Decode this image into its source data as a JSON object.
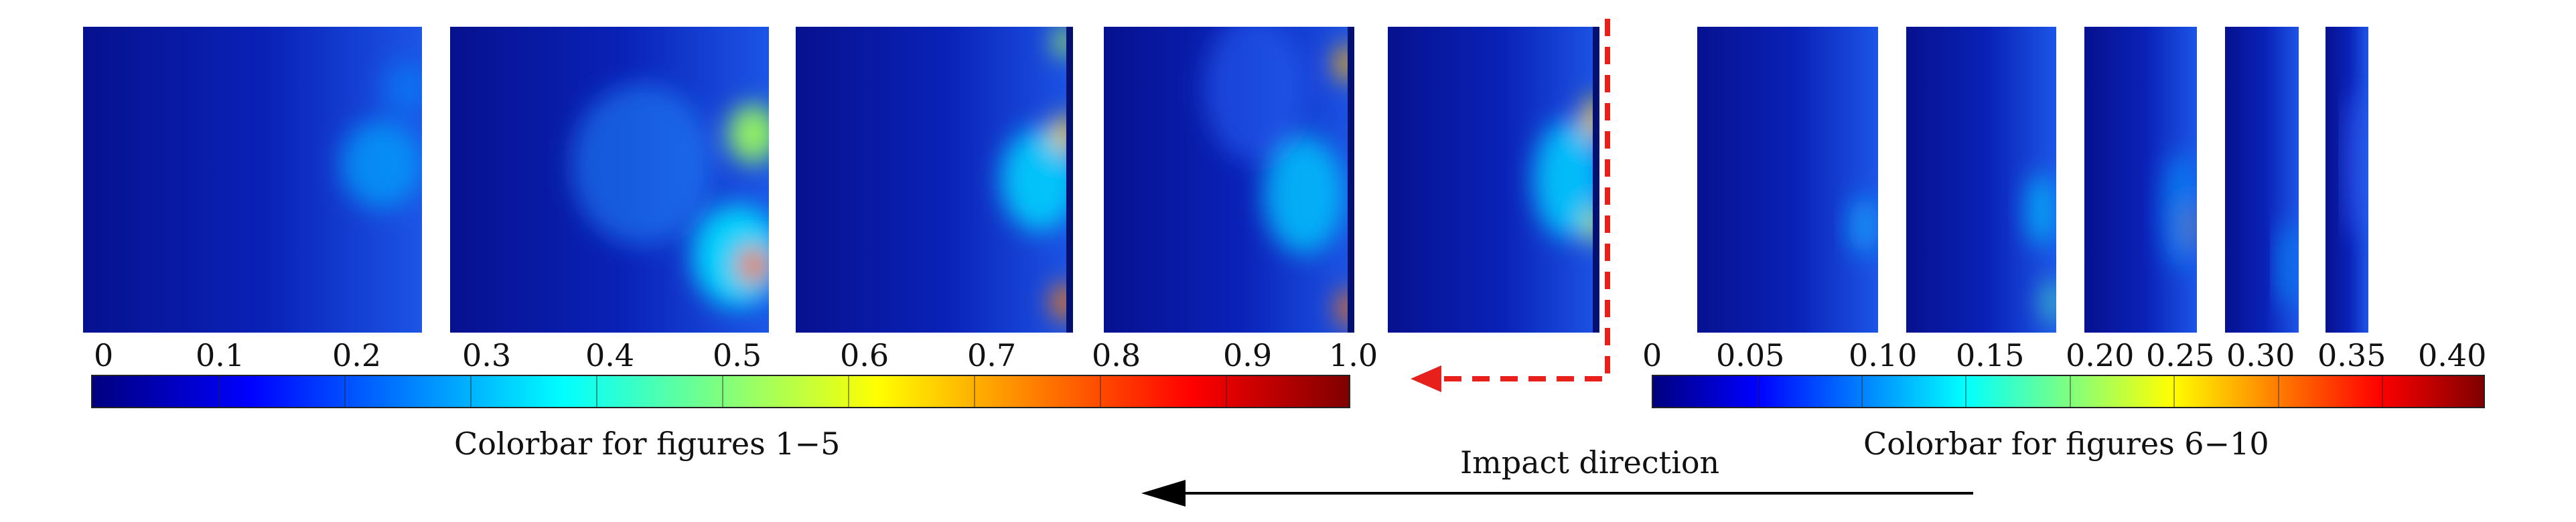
{
  "group_a": {
    "ticks": [
      "0",
      "0.1",
      "0.2",
      "0.3",
      "0.4",
      "0.5",
      "0.6",
      "0.7",
      "0.8",
      "0.9",
      "1.0"
    ],
    "colorbar_label": "Colorbar for figures 1−5"
  },
  "group_b": {
    "ticks": [
      "0",
      "0.05",
      "0.10",
      "0.15",
      "0.20",
      "0.25",
      "0.30",
      "0.35",
      "0.40"
    ],
    "colorbar_label": "Colorbar for figures 6−10"
  },
  "impact_label": "Impact direction",
  "colors": {
    "jet": [
      "#00007f",
      "#0000ff",
      "#007fff",
      "#00ffff",
      "#7fff7f",
      "#ffff00",
      "#ff7f00",
      "#ff0000",
      "#7f0000"
    ],
    "panel_base": "#0a1fb0",
    "red_arrow": "#e8201b",
    "black_arrow": "#000000"
  }
}
